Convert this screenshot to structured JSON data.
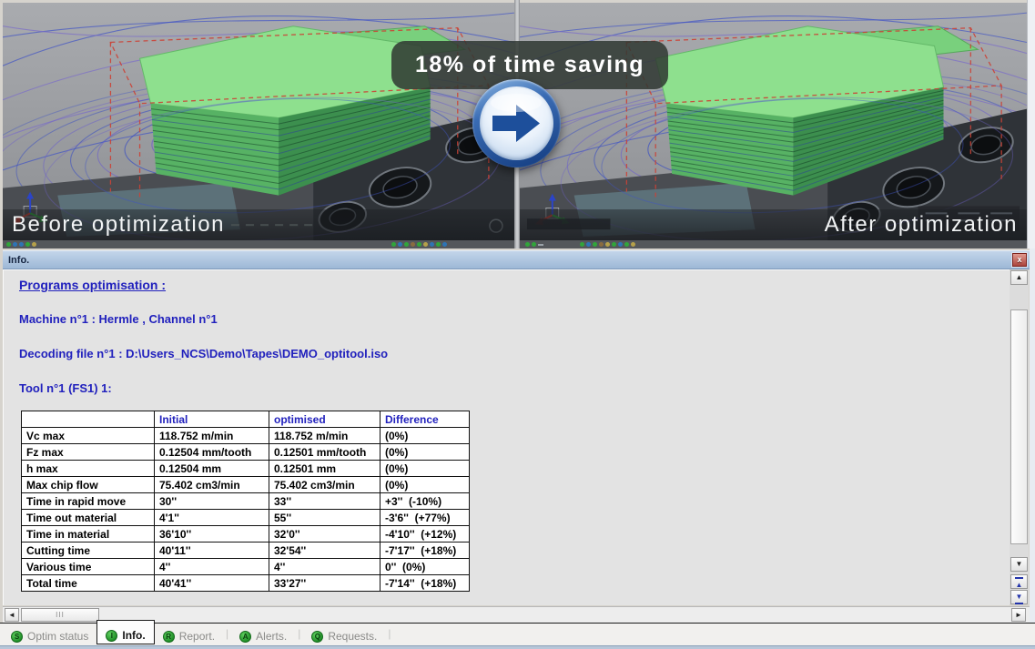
{
  "comparison": {
    "before_caption": "Before optimization",
    "after_caption": "After optimization",
    "badge_text": "18% of time saving"
  },
  "info_panel": {
    "title": "Info.",
    "heading": "Programs optimisation :",
    "machine_line": "Machine n°1 : Hermle , Channel n°1",
    "decoding_line": "Decoding file n°1 : D:\\Users_NCS\\Demo\\Tapes\\DEMO_optitool.iso",
    "tool_line": "Tool n°1 (FS1) 1:",
    "table": {
      "headers": [
        "",
        "Initial",
        "optimised",
        "Difference"
      ],
      "rows": [
        [
          "Vc max",
          "118.752 m/min",
          "118.752 m/min",
          "(0%)"
        ],
        [
          "Fz max",
          "0.12504 mm/tooth",
          "0.12501 mm/tooth",
          "(0%)"
        ],
        [
          "h max",
          "0.12504 mm",
          "0.12501 mm",
          "(0%)"
        ],
        [
          "Max chip flow",
          "75.402 cm3/min",
          "75.402 cm3/min",
          "(0%)"
        ],
        [
          "Time in rapid move",
          "30''",
          "33''",
          "+3''  (-10%)"
        ],
        [
          "Time out material",
          "4'1''",
          "55''",
          "-3'6''  (+77%)"
        ],
        [
          "Time in material",
          "36'10''",
          "32'0''",
          "-4'10''  (+12%)"
        ],
        [
          "Cutting time",
          "40'11''",
          "32'54''",
          "-7'17''  (+18%)"
        ],
        [
          "Various time",
          "4''",
          "4''",
          "0''  (0%)"
        ],
        [
          "Total time",
          "40'41''",
          "33'27''",
          "-7'14''  (+18%)"
        ]
      ]
    }
  },
  "tabs": [
    {
      "label": "Optim status",
      "badge_letter": "S",
      "active": false,
      "separator_after": false
    },
    {
      "label": "Info.",
      "badge_letter": "I",
      "active": true,
      "separator_after": false
    },
    {
      "label": "Report.",
      "badge_letter": "R",
      "active": false,
      "separator_after": true
    },
    {
      "label": "Alerts.",
      "badge_letter": "A",
      "active": false,
      "separator_after": true
    },
    {
      "label": "Requests.",
      "badge_letter": "Q",
      "active": false,
      "separator_after": true
    }
  ],
  "icons": {
    "close": "x",
    "scroll_up": "▲",
    "scroll_down": "▼",
    "scroll_left": "◄",
    "scroll_right": "►",
    "jump_top": "▲",
    "jump_bottom": "▼",
    "thumb_grip": "III",
    "separator": "|"
  },
  "colors": {
    "info_text_blue": "#2121bd",
    "titlebar_blue": "#aac3e0",
    "tab_green": "#2da33c",
    "close_red": "#c4605a",
    "arrow_blue": "#1d4f9b",
    "part_green": "#7ed87e",
    "toolpath_blue": "#3c50c2",
    "stock_red": "#cb4336"
  }
}
